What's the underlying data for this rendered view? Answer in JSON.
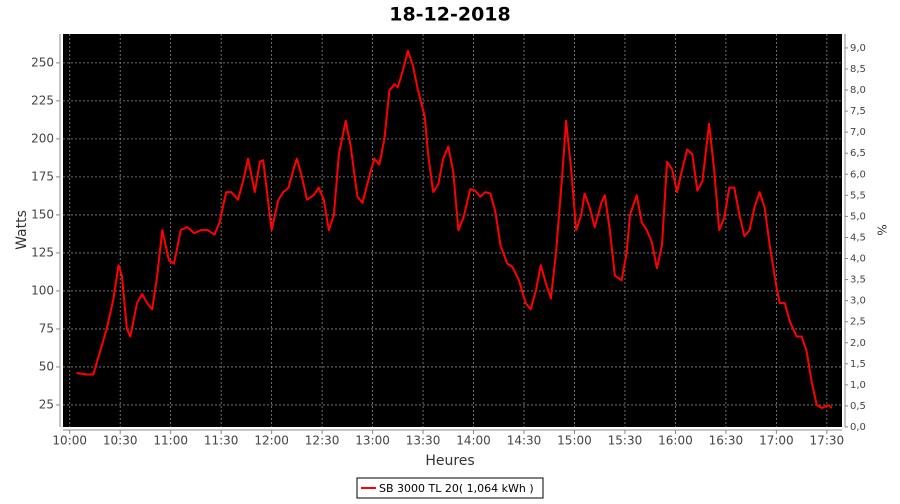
{
  "chart_data": {
    "type": "line",
    "title": "18-12-2018",
    "x_label": "Heures",
    "y_label": "Watts",
    "y2_label": "%",
    "x": [
      "10:04",
      "10:10",
      "10:14",
      "10:18",
      "10:22",
      "10:26",
      "10:29",
      "10:31",
      "10:34",
      "10:36",
      "10:40",
      "10:43",
      "10:46",
      "10:49",
      "10:52",
      "10:55",
      "10:59",
      "11:02",
      "11:06",
      "11:10",
      "11:14",
      "11:18",
      "11:22",
      "11:26",
      "11:29",
      "11:33",
      "11:36",
      "11:40",
      "11:43",
      "11:46",
      "11:50",
      "11:53",
      "11:55",
      "11:58",
      "12:00",
      "12:04",
      "12:07",
      "12:10",
      "12:13",
      "12:15",
      "12:18",
      "12:21",
      "12:25",
      "12:28",
      "12:31",
      "12:34",
      "12:37",
      "12:40",
      "12:44",
      "12:47",
      "12:51",
      "12:54",
      "12:58",
      "13:01",
      "13:04",
      "13:07",
      "13:10",
      "13:13",
      "13:15",
      "13:18",
      "13:21",
      "13:24",
      "13:27",
      "13:31",
      "13:33",
      "13:36",
      "13:39",
      "13:42",
      "13:45",
      "13:48",
      "13:51",
      "13:54",
      "13:58",
      "14:01",
      "14:04",
      "14:07",
      "14:10",
      "14:13",
      "14:16",
      "14:20",
      "14:23",
      "14:27",
      "14:31",
      "14:34",
      "14:37",
      "14:40",
      "14:43",
      "14:46",
      "14:49",
      "14:53",
      "14:55",
      "14:58",
      "15:01",
      "15:04",
      "15:06",
      "15:09",
      "15:12",
      "15:16",
      "15:18",
      "15:21",
      "15:24",
      "15:28",
      "15:31",
      "15:33",
      "15:37",
      "15:40",
      "15:43",
      "15:46",
      "15:49",
      "15:52",
      "15:55",
      "15:58",
      "16:01",
      "16:04",
      "16:07",
      "16:10",
      "16:13",
      "16:16",
      "16:20",
      "16:23",
      "16:26",
      "16:29",
      "16:32",
      "16:35",
      "16:38",
      "16:41",
      "16:44",
      "16:47",
      "16:50",
      "16:53",
      "16:56",
      "17:00",
      "17:02",
      "17:05",
      "17:08",
      "17:12",
      "17:15",
      "17:18",
      "17:21",
      "17:24",
      "17:27",
      "17:31",
      "17:33"
    ],
    "series": [
      {
        "name": "SB 3000 TL 20( 1,064 kWh )",
        "color": "#ff0000",
        "values": [
          46,
          45,
          45,
          60,
          75,
          95,
          117,
          110,
          75,
          70,
          92,
          98,
          92,
          88,
          110,
          140,
          120,
          118,
          140,
          142,
          138,
          140,
          140,
          137,
          145,
          165,
          165,
          160,
          172,
          187,
          165,
          185,
          186,
          158,
          140,
          160,
          165,
          168,
          180,
          187,
          175,
          160,
          163,
          168,
          160,
          140,
          150,
          190,
          212,
          195,
          162,
          158,
          175,
          187,
          183,
          200,
          232,
          236,
          234,
          245,
          258,
          248,
          232,
          215,
          190,
          165,
          170,
          187,
          195,
          178,
          140,
          148,
          167,
          166,
          162,
          165,
          164,
          152,
          130,
          118,
          116,
          107,
          92,
          88,
          100,
          117,
          105,
          95,
          125,
          180,
          212,
          180,
          140,
          150,
          164,
          155,
          142,
          158,
          163,
          140,
          110,
          107,
          125,
          150,
          163,
          145,
          140,
          132,
          115,
          130,
          185,
          180,
          165,
          180,
          193,
          190,
          166,
          172,
          210,
          180,
          140,
          148,
          168,
          168,
          150,
          136,
          140,
          155,
          165,
          155,
          130,
          103,
          92,
          92,
          80,
          70,
          70,
          60,
          40,
          25,
          23,
          25,
          23
        ]
      }
    ],
    "xlim": [
      "09:56",
      "17:39"
    ],
    "xticks": [
      "10:00",
      "10:30",
      "11:00",
      "11:30",
      "12:00",
      "12:30",
      "13:00",
      "13:30",
      "14:00",
      "14:30",
      "15:00",
      "15:30",
      "16:00",
      "16:30",
      "17:00",
      "17:30"
    ],
    "ylim": [
      10.5,
      269
    ],
    "yticks": [
      25,
      50,
      75,
      100,
      125,
      150,
      175,
      200,
      225,
      250
    ],
    "y2lim": [
      0,
      9.33
    ],
    "y2ticks": [
      {
        "value": 0,
        "label": "0,0"
      },
      {
        "value": 0.5,
        "label": "0,5"
      },
      {
        "value": 1,
        "label": "1,0"
      },
      {
        "value": 1.5,
        "label": "1,5"
      },
      {
        "value": 2,
        "label": "2,0"
      },
      {
        "value": 2.5,
        "label": "2,5"
      },
      {
        "value": 3,
        "label": "3,0"
      },
      {
        "value": 3.5,
        "label": "3,5"
      },
      {
        "value": 4,
        "label": "4,0"
      },
      {
        "value": 4.5,
        "label": "4,5"
      },
      {
        "value": 5,
        "label": "5,0"
      },
      {
        "value": 5.5,
        "label": "5,5"
      },
      {
        "value": 6,
        "label": "6,0"
      },
      {
        "value": 6.5,
        "label": "6,5"
      },
      {
        "value": 7,
        "label": "7,0"
      },
      {
        "value": 7.5,
        "label": "7,5"
      },
      {
        "value": 8,
        "label": "8,0"
      },
      {
        "value": 8.5,
        "label": "8,5"
      },
      {
        "value": 9,
        "label": "9,0"
      }
    ],
    "grid": true
  }
}
